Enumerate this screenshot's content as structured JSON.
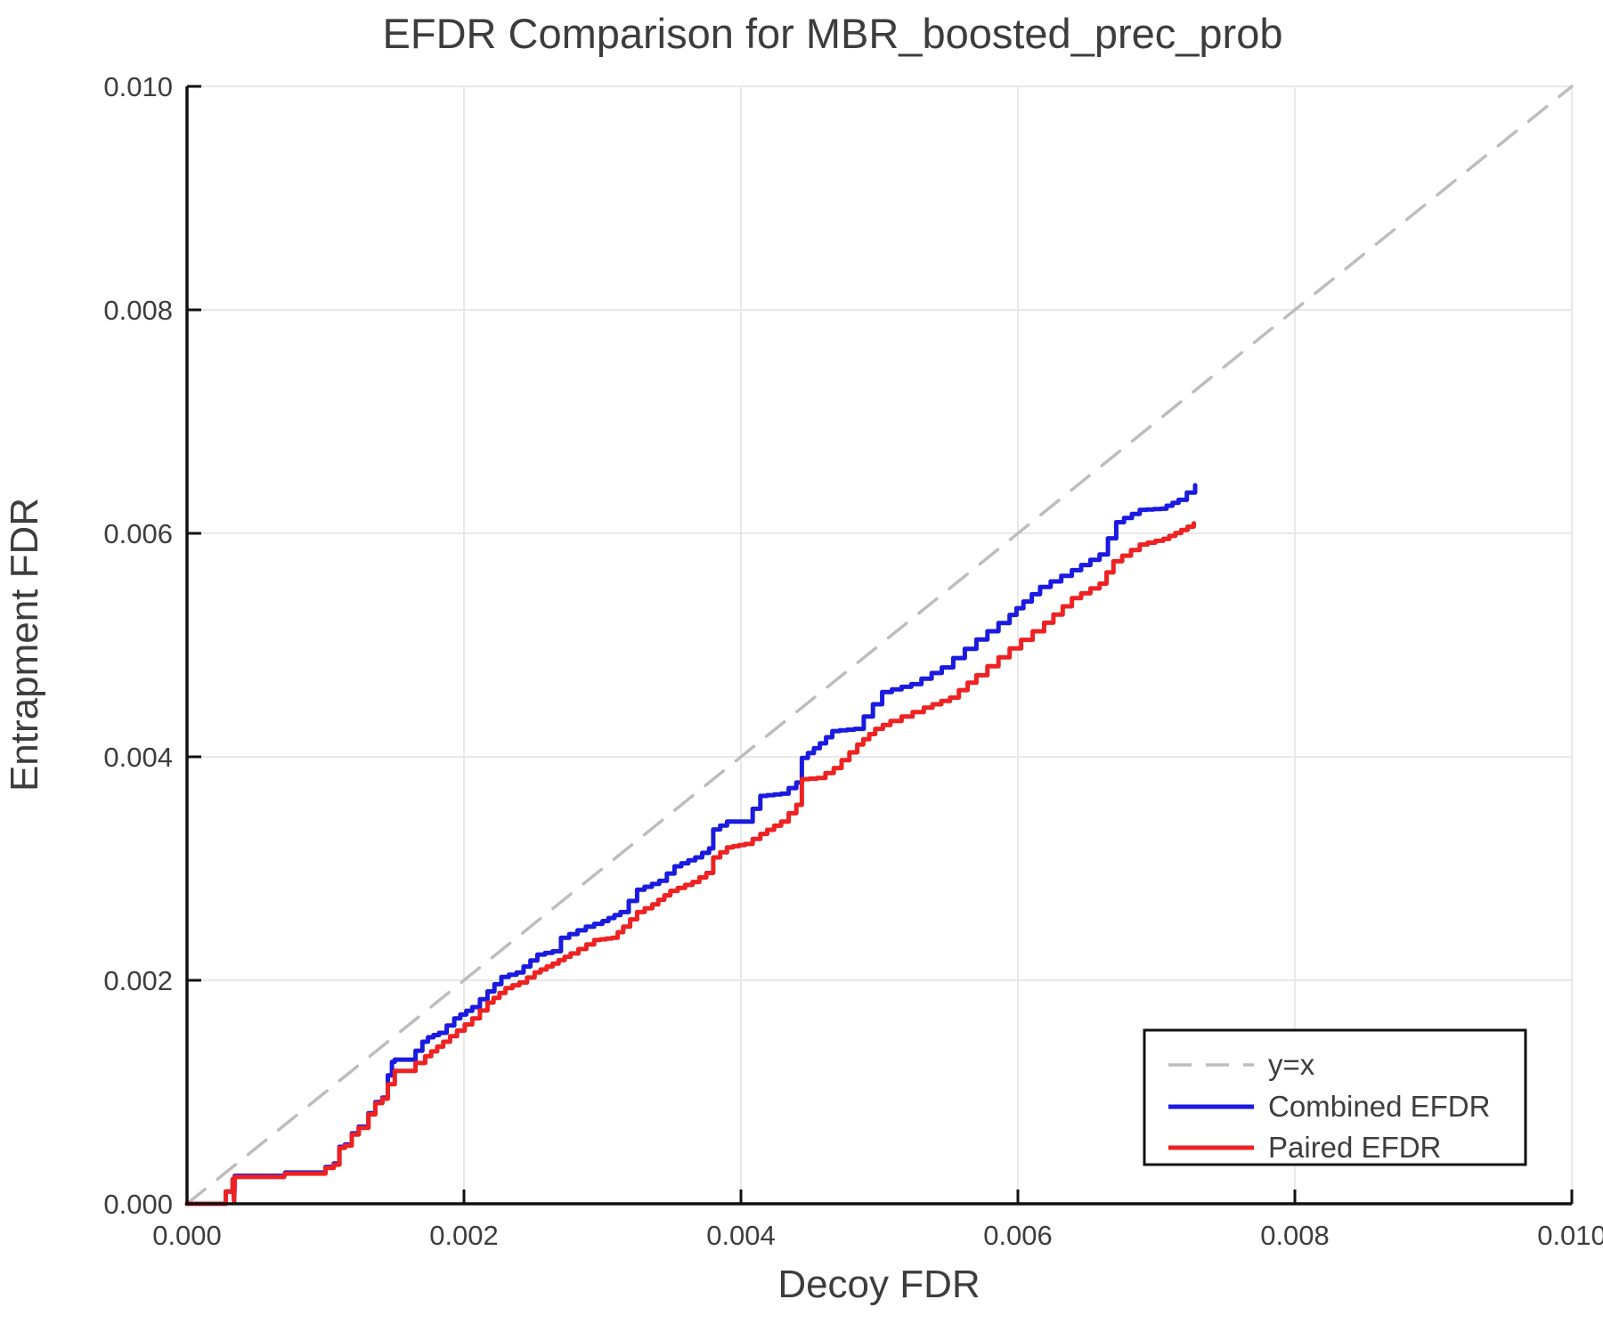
{
  "chart_data": {
    "type": "line",
    "title": "EFDR Comparison for MBR_boosted_prec_prob",
    "xlabel": "Decoy FDR",
    "ylabel": "Entrapment FDR",
    "xlim": [
      0,
      0.01
    ],
    "ylim": [
      0,
      0.01
    ],
    "grid": true,
    "x_ticks": {
      "values": [
        0,
        0.002,
        0.004,
        0.006,
        0.008,
        0.01
      ],
      "labels": [
        "0.000",
        "0.002",
        "0.004",
        "0.006",
        "0.008",
        "0.010"
      ]
    },
    "y_ticks": {
      "values": [
        0,
        0.002,
        0.004,
        0.006,
        0.008,
        0.01
      ],
      "labels": [
        "0.000",
        "0.002",
        "0.004",
        "0.006",
        "0.008",
        "0.010"
      ]
    },
    "colors": {
      "identity": "#bdbdbd",
      "combined": "#1a1ae0",
      "paired": "#ee2222",
      "grid": "#e8e8e8",
      "axis": "#111111",
      "text": "#3d3d3d"
    },
    "legend": {
      "position": "lower right",
      "entries": [
        {
          "label": "y=x",
          "color": "#bdbdbd",
          "dashed": true
        },
        {
          "label": "Combined EFDR",
          "color": "#1a1ae0",
          "dashed": false
        },
        {
          "label": "Paired EFDR",
          "color": "#ee2222",
          "dashed": false
        }
      ]
    },
    "series": [
      {
        "name": "y=x",
        "style": "dashed",
        "color": "#bdbdbd",
        "points": [
          [
            0,
            0
          ],
          [
            0.01,
            0.01
          ]
        ]
      },
      {
        "name": "Combined EFDR",
        "style": "step",
        "color": "#1a1ae0",
        "points": [
          [
            0.0,
            0.0
          ],
          [
            0.00023,
            0.0
          ],
          [
            0.00033,
            0.00022
          ],
          [
            0.00034,
            2e-05
          ],
          [
            0.000345,
            0.00025
          ],
          [
            0.0007,
            0.00025
          ],
          [
            0.00071,
            0.00028
          ],
          [
            0.00098,
            0.00028
          ],
          [
            0.001,
            0.00033
          ],
          [
            0.00106,
            0.00036
          ],
          [
            0.0011,
            0.00051
          ],
          [
            0.00114,
            0.00053
          ],
          [
            0.00119,
            0.00063
          ],
          [
            0.00124,
            0.00069
          ],
          [
            0.00131,
            0.00081
          ],
          [
            0.00136,
            0.00091
          ],
          [
            0.00141,
            0.00095
          ],
          [
            0.00145,
            0.00115
          ],
          [
            0.00148,
            0.00127
          ],
          [
            0.0015,
            0.00129
          ],
          [
            0.00162,
            0.00129
          ],
          [
            0.00165,
            0.00137
          ],
          [
            0.0017,
            0.00145
          ],
          [
            0.00174,
            0.00149
          ],
          [
            0.00182,
            0.00153
          ],
          [
            0.00193,
            0.00166
          ],
          [
            0.00206,
            0.00176
          ],
          [
            0.00217,
            0.0019
          ],
          [
            0.00227,
            0.00203
          ],
          [
            0.00238,
            0.00207
          ],
          [
            0.00253,
            0.00223
          ],
          [
            0.00264,
            0.00226
          ],
          [
            0.0027,
            0.00238
          ],
          [
            0.00288,
            0.00248
          ],
          [
            0.003,
            0.00253
          ],
          [
            0.00313,
            0.00261
          ],
          [
            0.00325,
            0.00281
          ],
          [
            0.00341,
            0.00289
          ],
          [
            0.00352,
            0.00302
          ],
          [
            0.00367,
            0.0031
          ],
          [
            0.00377,
            0.00318
          ],
          [
            0.0038,
            0.00335
          ],
          [
            0.0039,
            0.00342
          ],
          [
            0.00403,
            0.00342
          ],
          [
            0.00414,
            0.00365
          ],
          [
            0.00429,
            0.00367
          ],
          [
            0.0044,
            0.00377
          ],
          [
            0.00444,
            0.00399
          ],
          [
            0.00457,
            0.00412
          ],
          [
            0.00466,
            0.00423
          ],
          [
            0.00482,
            0.00425
          ],
          [
            0.00502,
            0.00458
          ],
          [
            0.00523,
            0.00465
          ],
          [
            0.00545,
            0.0048
          ],
          [
            0.0057,
            0.00505
          ],
          [
            0.00594,
            0.00527
          ],
          [
            0.00604,
            0.00539
          ],
          [
            0.00616,
            0.00552
          ],
          [
            0.00639,
            0.00567
          ],
          [
            0.00659,
            0.00581
          ],
          [
            0.00671,
            0.0061
          ],
          [
            0.00688,
            0.00621
          ],
          [
            0.00703,
            0.00622
          ],
          [
            0.00716,
            0.0063
          ],
          [
            0.00728,
            0.00643
          ]
        ]
      },
      {
        "name": "Paired EFDR",
        "style": "step",
        "color": "#ee2222",
        "points": [
          [
            0.0,
            0.0
          ],
          [
            0.00023,
            0.0
          ],
          [
            0.00033,
            0.00022
          ],
          [
            0.00034,
            2e-05
          ],
          [
            0.000345,
            0.00024
          ],
          [
            0.0007,
            0.00024
          ],
          [
            0.00071,
            0.00027
          ],
          [
            0.00098,
            0.00027
          ],
          [
            0.001,
            0.00032
          ],
          [
            0.00106,
            0.00035
          ],
          [
            0.0011,
            0.0005
          ],
          [
            0.00114,
            0.00052
          ],
          [
            0.00119,
            0.00062
          ],
          [
            0.00124,
            0.00068
          ],
          [
            0.00131,
            0.0008
          ],
          [
            0.00136,
            0.0009
          ],
          [
            0.00141,
            0.00094
          ],
          [
            0.00145,
            0.00107
          ],
          [
            0.0015,
            0.00119
          ],
          [
            0.00162,
            0.00119
          ],
          [
            0.00165,
            0.00126
          ],
          [
            0.00172,
            0.00132
          ],
          [
            0.00185,
            0.00145
          ],
          [
            0.00195,
            0.00155
          ],
          [
            0.00206,
            0.00166
          ],
          [
            0.00217,
            0.0018
          ],
          [
            0.0023,
            0.00193
          ],
          [
            0.0024,
            0.00198
          ],
          [
            0.00251,
            0.00207
          ],
          [
            0.00264,
            0.00215
          ],
          [
            0.00277,
            0.00224
          ],
          [
            0.00294,
            0.00236
          ],
          [
            0.00307,
            0.00238
          ],
          [
            0.00315,
            0.00248
          ],
          [
            0.00325,
            0.00261
          ],
          [
            0.00336,
            0.00268
          ],
          [
            0.00349,
            0.0028
          ],
          [
            0.00365,
            0.00288
          ],
          [
            0.00375,
            0.00296
          ],
          [
            0.0038,
            0.0031
          ],
          [
            0.0039,
            0.00319
          ],
          [
            0.00403,
            0.00322
          ],
          [
            0.00414,
            0.00331
          ],
          [
            0.00429,
            0.00342
          ],
          [
            0.0044,
            0.00357
          ],
          [
            0.00444,
            0.0038
          ],
          [
            0.00455,
            0.00381
          ],
          [
            0.00467,
            0.0039
          ],
          [
            0.00484,
            0.00411
          ],
          [
            0.00497,
            0.00425
          ],
          [
            0.00508,
            0.00432
          ],
          [
            0.00532,
            0.00444
          ],
          [
            0.00551,
            0.00453
          ],
          [
            0.0057,
            0.00473
          ],
          [
            0.00594,
            0.00497
          ],
          [
            0.00619,
            0.0052
          ],
          [
            0.00639,
            0.00542
          ],
          [
            0.00659,
            0.00555
          ],
          [
            0.00669,
            0.00575
          ],
          [
            0.00688,
            0.0059
          ],
          [
            0.00705,
            0.00595
          ],
          [
            0.00718,
            0.00603
          ],
          [
            0.00727,
            0.00609
          ]
        ]
      }
    ]
  }
}
